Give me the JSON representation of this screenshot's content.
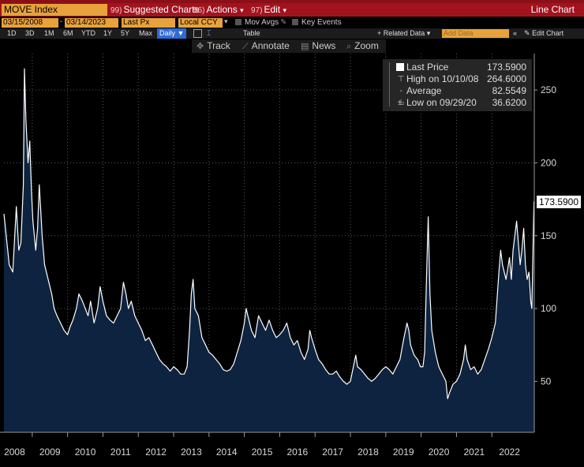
{
  "header": {
    "ticker": "MOVE Index",
    "menus": [
      {
        "num": "99)",
        "label": "Suggested Charts"
      },
      {
        "num": "96)",
        "label": "Actions",
        "caret": "▾"
      },
      {
        "num": "97)",
        "label": "Edit",
        "caret": "▾"
      }
    ],
    "chart_type": "Line Chart"
  },
  "settings": {
    "start_date": "03/15/2008",
    "end_date": "03/14/2023",
    "field": "Last Px",
    "currency": "Local CCY",
    "mov_avgs": "Mov Avgs",
    "key_events": "Key Events"
  },
  "ranges": {
    "items": [
      "1D",
      "3D",
      "1M",
      "6M",
      "YTD",
      "1Y",
      "5Y",
      "Max"
    ],
    "frequency": "Daily ▼",
    "table": "Table",
    "related_data": "+ Related Data ▾",
    "add_data_placeholder": "Add Data",
    "collapse": "«",
    "edit_chart": "Edit Chart",
    "dropdown": "▾"
  },
  "toolbar": {
    "track": "Track",
    "annotate": "Annotate",
    "news": "News",
    "zoom": "Zoom"
  },
  "legend": {
    "last_label": "Last Price",
    "last_value": "173.5900",
    "high_label": "High on 10/10/08",
    "high_value": "264.6000",
    "avg_label": "Average",
    "avg_value": "82.5549",
    "low_label": "Low on 09/29/20",
    "low_value": "36.6200"
  },
  "colors": {
    "accent_red": "#a3131f",
    "amber": "#e8a23b",
    "area_fill": "#0d2340",
    "line": "#ffffff",
    "active_blue": "#2d6bd9"
  },
  "chart_data": {
    "type": "area",
    "title": "MOVE Index",
    "xlabel": "",
    "ylabel": "",
    "ylim": [
      15,
      275
    ],
    "y_ticks": [
      50,
      100,
      150,
      200,
      250
    ],
    "x_tick_labels": [
      "2008",
      "2009",
      "2010",
      "2011",
      "2012",
      "2013",
      "2014",
      "2015",
      "2016",
      "2017",
      "2018",
      "2019",
      "2020",
      "2021",
      "2022"
    ],
    "x_tick_years": [
      2008,
      2009,
      2010,
      2011,
      2012,
      2013,
      2014,
      2015,
      2016,
      2017,
      2018,
      2019,
      2020,
      2021,
      2022
    ],
    "x_range": [
      2008.2,
      2023.2
    ],
    "last_value_label": "173.5900",
    "series": [
      {
        "name": "Last Price",
        "points": [
          [
            2008.2,
            165
          ],
          [
            2008.35,
            130
          ],
          [
            2008.45,
            125
          ],
          [
            2008.55,
            170
          ],
          [
            2008.62,
            140
          ],
          [
            2008.68,
            145
          ],
          [
            2008.75,
            185
          ],
          [
            2008.78,
            264.6
          ],
          [
            2008.82,
            230
          ],
          [
            2008.88,
            200
          ],
          [
            2008.93,
            215
          ],
          [
            2008.98,
            180
          ],
          [
            2009.02,
            160
          ],
          [
            2009.06,
            150
          ],
          [
            2009.1,
            140
          ],
          [
            2009.15,
            155
          ],
          [
            2009.2,
            185
          ],
          [
            2009.28,
            150
          ],
          [
            2009.35,
            130
          ],
          [
            2009.45,
            120
          ],
          [
            2009.55,
            110
          ],
          [
            2009.62,
            100
          ],
          [
            2009.7,
            95
          ],
          [
            2009.8,
            90
          ],
          [
            2009.9,
            85
          ],
          [
            2010.0,
            82
          ],
          [
            2010.08,
            88
          ],
          [
            2010.15,
            92
          ],
          [
            2010.25,
            100
          ],
          [
            2010.32,
            110
          ],
          [
            2010.42,
            105
          ],
          [
            2010.5,
            100
          ],
          [
            2010.58,
            95
          ],
          [
            2010.65,
            105
          ],
          [
            2010.75,
            90
          ],
          [
            2010.85,
            100
          ],
          [
            2010.92,
            115
          ],
          [
            2011.0,
            105
          ],
          [
            2011.1,
            95
          ],
          [
            2011.2,
            92
          ],
          [
            2011.3,
            90
          ],
          [
            2011.4,
            95
          ],
          [
            2011.5,
            100
          ],
          [
            2011.58,
            118
          ],
          [
            2011.65,
            110
          ],
          [
            2011.72,
            100
          ],
          [
            2011.8,
            105
          ],
          [
            2011.9,
            95
          ],
          [
            2012.0,
            90
          ],
          [
            2012.1,
            85
          ],
          [
            2012.2,
            78
          ],
          [
            2012.3,
            80
          ],
          [
            2012.4,
            75
          ],
          [
            2012.5,
            70
          ],
          [
            2012.6,
            65
          ],
          [
            2012.7,
            62
          ],
          [
            2012.8,
            60
          ],
          [
            2012.9,
            57
          ],
          [
            2013.0,
            60
          ],
          [
            2013.1,
            58
          ],
          [
            2013.2,
            55
          ],
          [
            2013.3,
            55
          ],
          [
            2013.38,
            60
          ],
          [
            2013.45,
            85
          ],
          [
            2013.5,
            110
          ],
          [
            2013.55,
            120
          ],
          [
            2013.6,
            100
          ],
          [
            2013.7,
            95
          ],
          [
            2013.8,
            80
          ],
          [
            2013.9,
            75
          ],
          [
            2014.0,
            70
          ],
          [
            2014.1,
            68
          ],
          [
            2014.2,
            65
          ],
          [
            2014.3,
            62
          ],
          [
            2014.4,
            58
          ],
          [
            2014.5,
            57
          ],
          [
            2014.6,
            58
          ],
          [
            2014.7,
            62
          ],
          [
            2014.8,
            70
          ],
          [
            2014.9,
            78
          ],
          [
            2015.0,
            90
          ],
          [
            2015.05,
            100
          ],
          [
            2015.1,
            95
          ],
          [
            2015.2,
            85
          ],
          [
            2015.3,
            80
          ],
          [
            2015.4,
            95
          ],
          [
            2015.5,
            90
          ],
          [
            2015.6,
            85
          ],
          [
            2015.7,
            92
          ],
          [
            2015.8,
            85
          ],
          [
            2015.9,
            80
          ],
          [
            2016.0,
            82
          ],
          [
            2016.1,
            85
          ],
          [
            2016.2,
            90
          ],
          [
            2016.3,
            80
          ],
          [
            2016.4,
            75
          ],
          [
            2016.5,
            78
          ],
          [
            2016.6,
            70
          ],
          [
            2016.7,
            65
          ],
          [
            2016.8,
            72
          ],
          [
            2016.85,
            85
          ],
          [
            2016.9,
            80
          ],
          [
            2017.0,
            72
          ],
          [
            2017.1,
            65
          ],
          [
            2017.2,
            62
          ],
          [
            2017.3,
            58
          ],
          [
            2017.4,
            55
          ],
          [
            2017.5,
            55
          ],
          [
            2017.6,
            57
          ],
          [
            2017.7,
            53
          ],
          [
            2017.8,
            50
          ],
          [
            2017.9,
            48
          ],
          [
            2018.0,
            50
          ],
          [
            2018.1,
            62
          ],
          [
            2018.15,
            68
          ],
          [
            2018.2,
            60
          ],
          [
            2018.3,
            58
          ],
          [
            2018.4,
            55
          ],
          [
            2018.5,
            52
          ],
          [
            2018.6,
            50
          ],
          [
            2018.7,
            52
          ],
          [
            2018.8,
            55
          ],
          [
            2018.9,
            58
          ],
          [
            2019.0,
            60
          ],
          [
            2019.1,
            58
          ],
          [
            2019.2,
            55
          ],
          [
            2019.3,
            60
          ],
          [
            2019.4,
            65
          ],
          [
            2019.5,
            78
          ],
          [
            2019.6,
            90
          ],
          [
            2019.65,
            85
          ],
          [
            2019.7,
            75
          ],
          [
            2019.8,
            68
          ],
          [
            2019.9,
            65
          ],
          [
            2019.98,
            60
          ],
          [
            2020.05,
            60
          ],
          [
            2020.1,
            70
          ],
          [
            2020.15,
            120
          ],
          [
            2020.2,
            163
          ],
          [
            2020.25,
            110
          ],
          [
            2020.3,
            85
          ],
          [
            2020.4,
            70
          ],
          [
            2020.5,
            60
          ],
          [
            2020.6,
            55
          ],
          [
            2020.7,
            50
          ],
          [
            2020.75,
            38
          ],
          [
            2020.8,
            42
          ],
          [
            2020.9,
            48
          ],
          [
            2021.0,
            50
          ],
          [
            2021.1,
            55
          ],
          [
            2021.2,
            65
          ],
          [
            2021.25,
            75
          ],
          [
            2021.3,
            65
          ],
          [
            2021.4,
            58
          ],
          [
            2021.5,
            60
          ],
          [
            2021.6,
            55
          ],
          [
            2021.7,
            58
          ],
          [
            2021.8,
            65
          ],
          [
            2021.9,
            72
          ],
          [
            2022.0,
            80
          ],
          [
            2022.1,
            90
          ],
          [
            2022.2,
            125
          ],
          [
            2022.25,
            140
          ],
          [
            2022.3,
            130
          ],
          [
            2022.4,
            120
          ],
          [
            2022.5,
            135
          ],
          [
            2022.55,
            120
          ],
          [
            2022.6,
            140
          ],
          [
            2022.7,
            160
          ],
          [
            2022.75,
            145
          ],
          [
            2022.8,
            130
          ],
          [
            2022.85,
            140
          ],
          [
            2022.9,
            155
          ],
          [
            2022.95,
            130
          ],
          [
            2023.0,
            120
          ],
          [
            2023.05,
            125
          ],
          [
            2023.1,
            105
          ],
          [
            2023.13,
            100
          ],
          [
            2023.16,
            135
          ],
          [
            2023.19,
            173.59
          ]
        ]
      }
    ],
    "reference_values": {
      "high": 264.6,
      "average": 82.5549,
      "low": 36.62
    }
  }
}
